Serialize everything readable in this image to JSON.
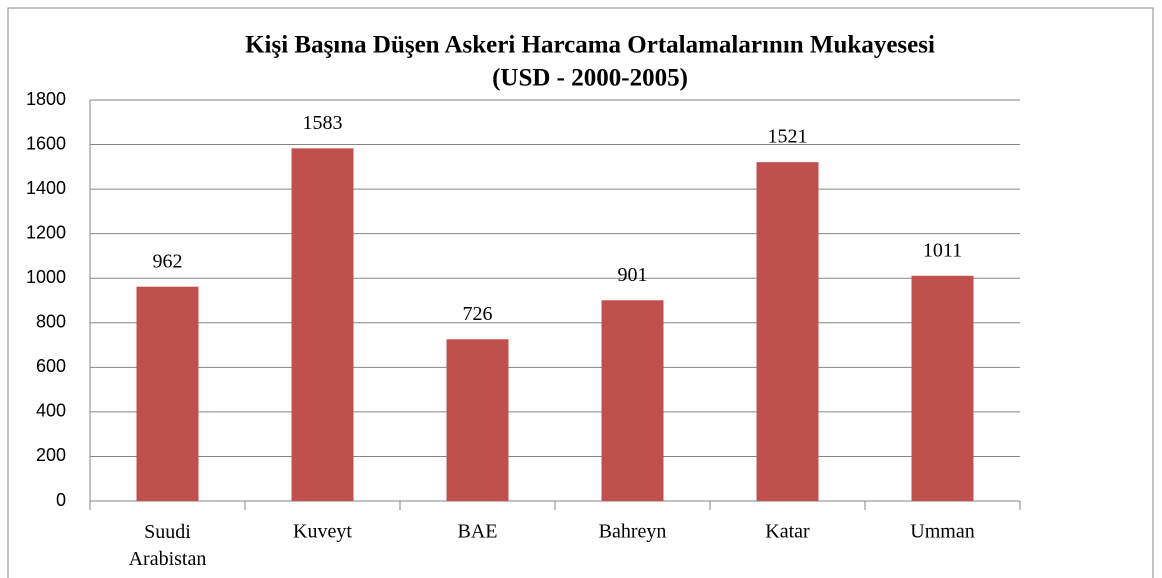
{
  "chart_data": {
    "type": "bar",
    "title": [
      "Kişi Başına Düşen Askeri Harcama Ortalamalarının Mukayesesi",
      "(USD - 2000-2005)"
    ],
    "categories": [
      "Suudi Arabistan",
      "Kuveyt",
      "BAE",
      "Bahreyn",
      "Katar",
      "Umman"
    ],
    "values": [
      962,
      1583,
      726,
      901,
      1521,
      1011
    ],
    "color": "#c0504d",
    "ylim": [
      0,
      1800
    ],
    "yticks": [
      0,
      200,
      400,
      600,
      800,
      1000,
      1200,
      1400,
      1600,
      1800
    ],
    "grid": true
  }
}
